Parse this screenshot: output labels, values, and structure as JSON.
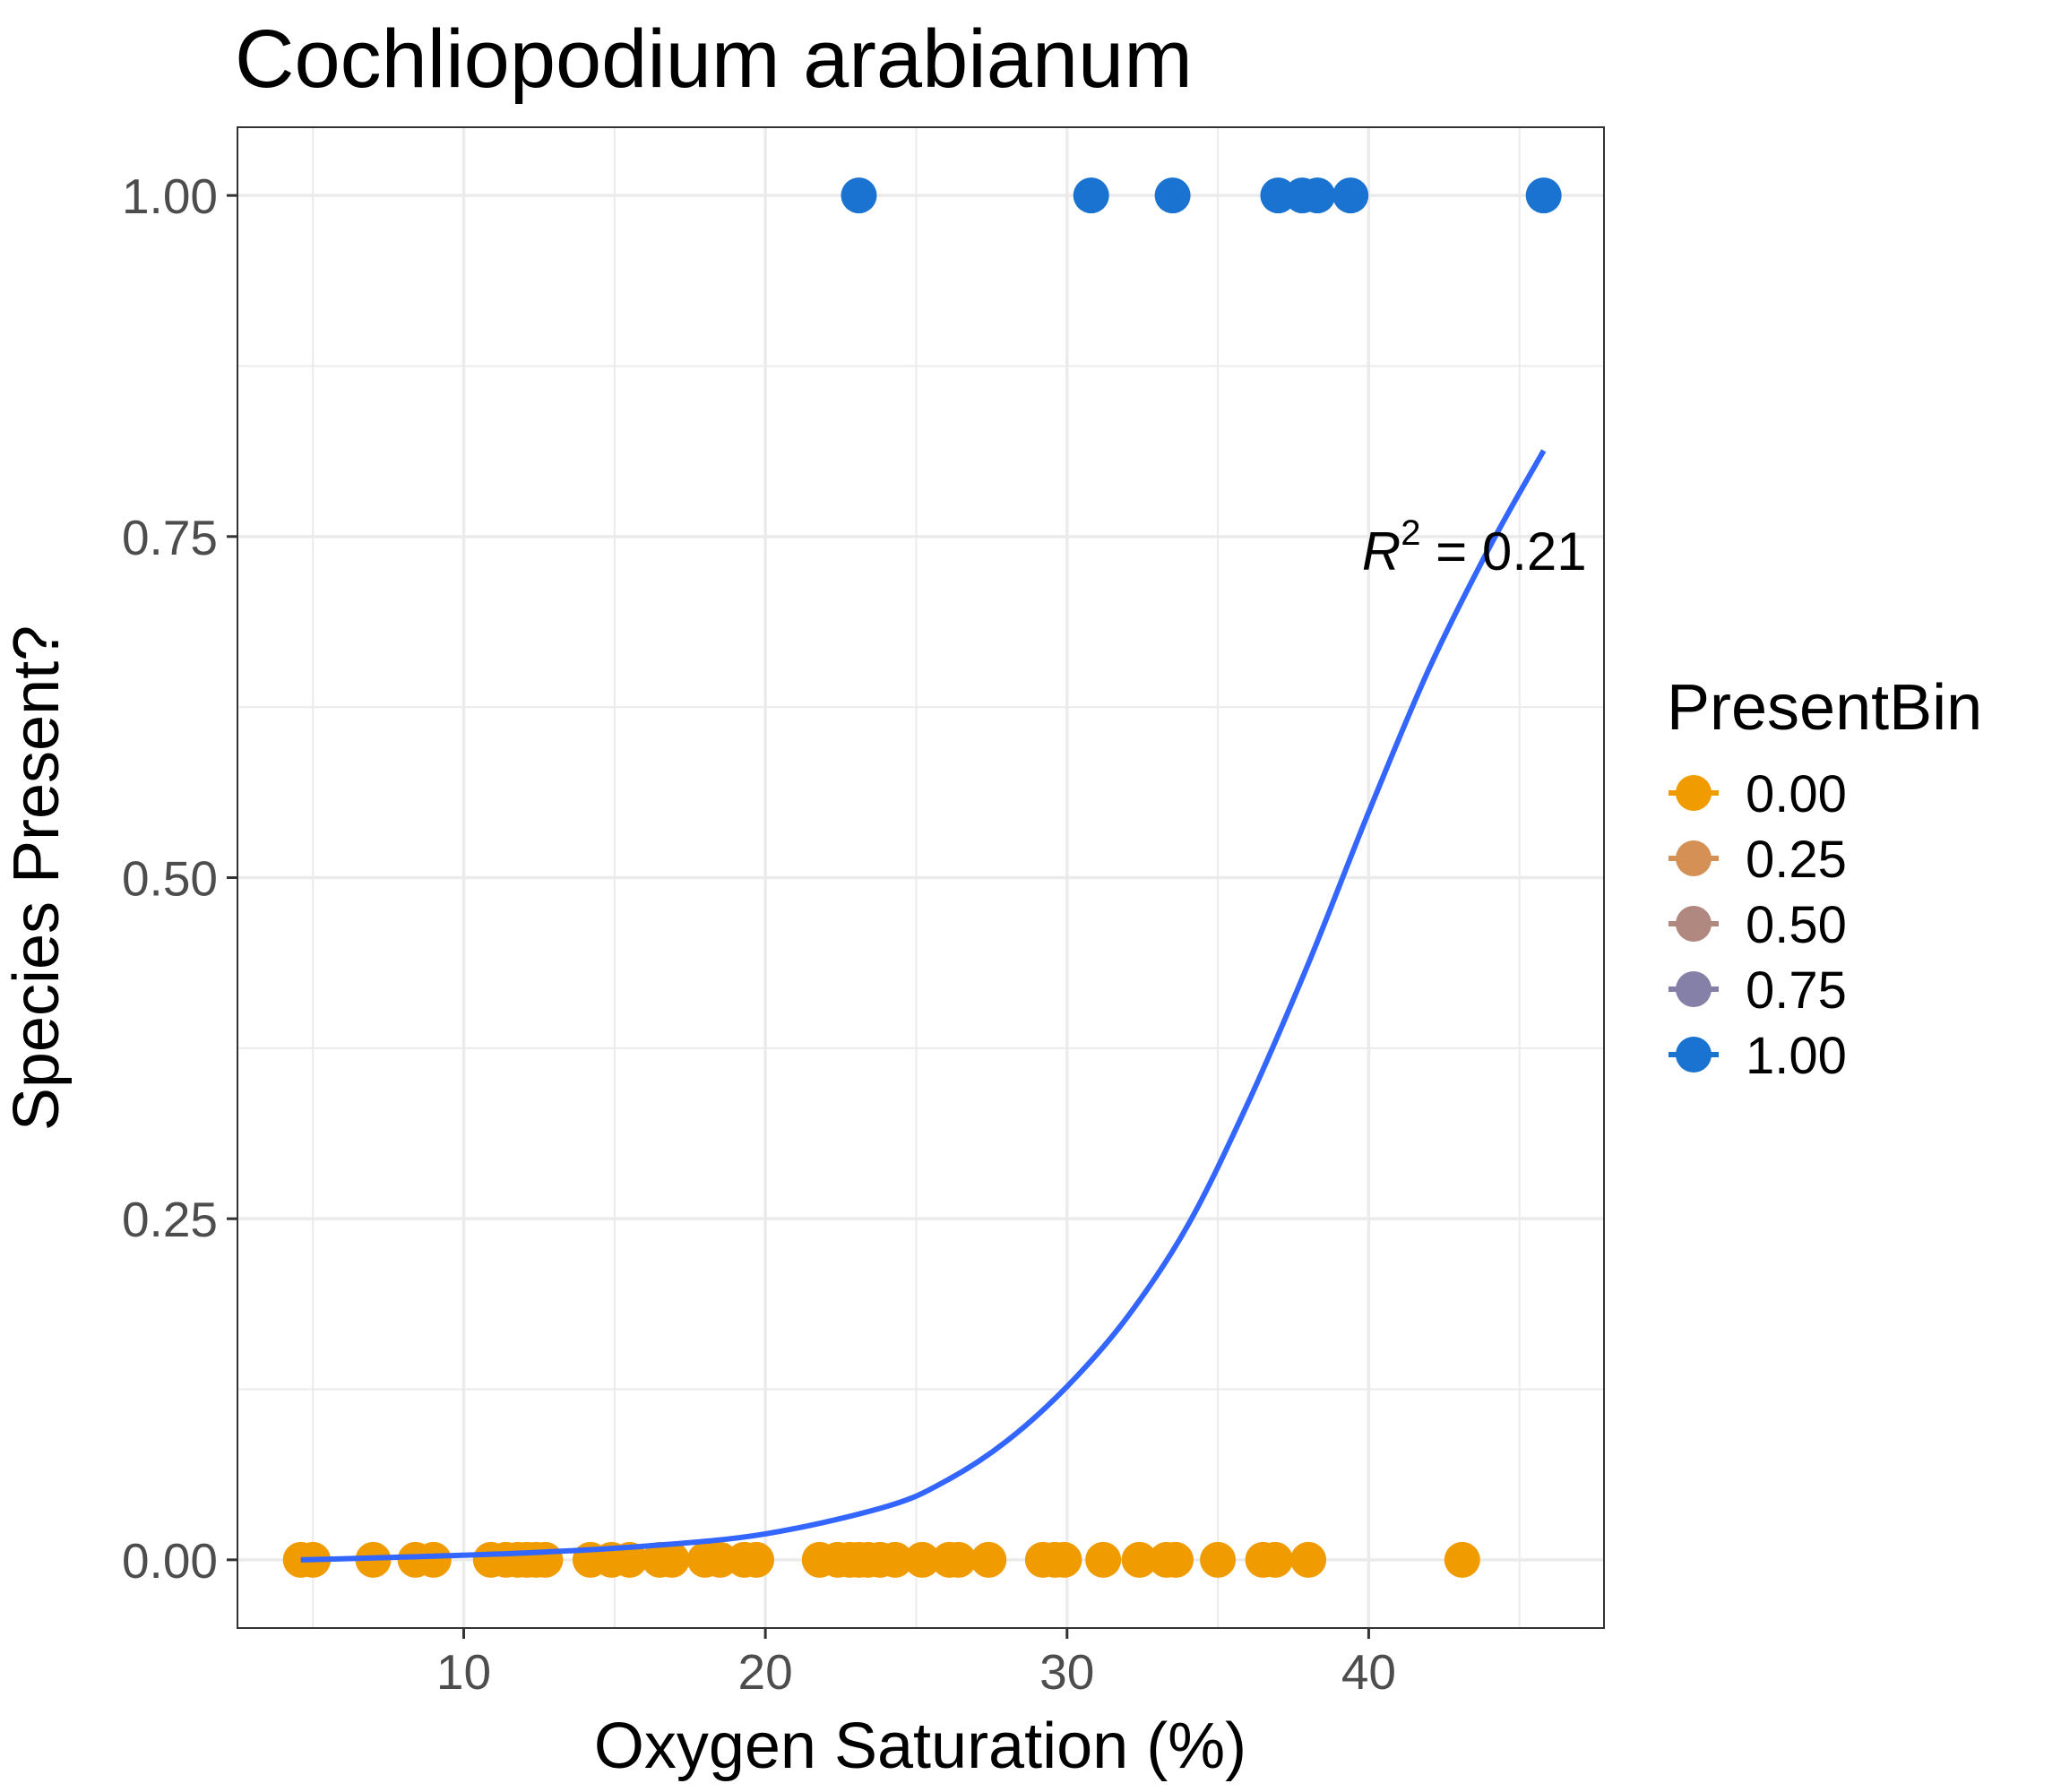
{
  "chart_data": {
    "type": "scatter",
    "title": "Cochliopodium arabianum",
    "xlabel": "Oxygen Saturation (%)",
    "ylabel": "Species Present?",
    "xlim": [
      2.5,
      47.8
    ],
    "ylim": [
      -0.05,
      1.05
    ],
    "x_ticks": [
      10,
      20,
      30,
      40
    ],
    "x_tick_labels": [
      "10",
      "20",
      "30",
      "40"
    ],
    "y_ticks": [
      0,
      0.25,
      0.5,
      0.75,
      1
    ],
    "y_tick_labels": [
      "0.00",
      "0.25",
      "0.50",
      "0.75",
      "1.00"
    ],
    "grid": true,
    "legend": {
      "title": "PresentBin",
      "position": "right",
      "entries": [
        {
          "label": "0.00",
          "color": "#F09B00"
        },
        {
          "label": "0.25",
          "color": "#D49055"
        },
        {
          "label": "0.50",
          "color": "#B08880"
        },
        {
          "label": "0.75",
          "color": "#8580A8"
        },
        {
          "label": "1.00",
          "color": "#1A73D0"
        }
      ]
    },
    "annotation": {
      "text_prefix": "R",
      "superscript": "2",
      "text_suffix": " = 0.21",
      "x": 43.5,
      "y": 0.74
    },
    "series": [
      {
        "name": "0.00",
        "color": "#F09B00",
        "x": [
          4.6,
          5.0,
          7.0,
          8.4,
          9.0,
          10.9,
          11.4,
          11.8,
          12.1,
          12.4,
          12.7,
          14.2,
          14.9,
          15.5,
          16.5,
          16.9,
          18.0,
          18.5,
          19.3,
          19.7,
          21.8,
          22.4,
          22.8,
          23.1,
          23.4,
          23.8,
          24.3,
          25.2,
          26.1,
          26.4,
          27.4,
          29.2,
          29.6,
          29.9,
          31.2,
          32.4,
          33.3,
          33.6,
          35.0,
          36.5,
          36.9,
          38.0,
          43.1
        ],
        "y": [
          0,
          0,
          0,
          0,
          0,
          0,
          0,
          0,
          0,
          0,
          0,
          0,
          0,
          0,
          0,
          0,
          0,
          0,
          0,
          0,
          0,
          0,
          0,
          0,
          0,
          0,
          0,
          0,
          0,
          0,
          0,
          0,
          0,
          0,
          0,
          0,
          0,
          0,
          0,
          0,
          0,
          0,
          0
        ]
      },
      {
        "name": "1.00",
        "color": "#1A73D0",
        "x": [
          23.1,
          30.8,
          33.5,
          37.0,
          37.8,
          38.3,
          39.4,
          45.8
        ],
        "y": [
          1,
          1,
          1,
          1,
          1,
          1,
          1,
          1
        ]
      }
    ],
    "fit": {
      "type": "logistic",
      "color": "#3366FF",
      "x": [
        4.6,
        8,
        12,
        16,
        20,
        24,
        26,
        28,
        30,
        32,
        34,
        36,
        38,
        40,
        42,
        44,
        45.8
      ],
      "y": [
        0.0,
        0.002,
        0.005,
        0.01,
        0.019,
        0.039,
        0.058,
        0.087,
        0.127,
        0.178,
        0.245,
        0.335,
        0.437,
        0.548,
        0.653,
        0.742,
        0.813
      ]
    }
  }
}
